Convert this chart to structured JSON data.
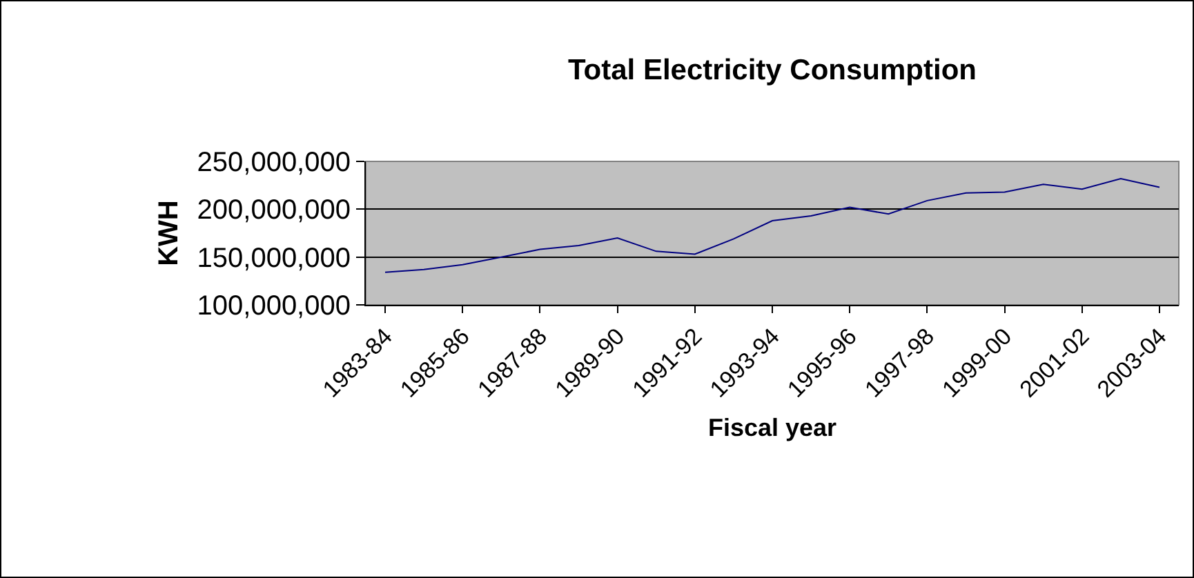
{
  "chart_data": {
    "type": "line",
    "title": "Total Electricity Consumption",
    "xlabel": "Fiscal year",
    "ylabel": "KWH",
    "categories": [
      "1983-84",
      null,
      "1985-86",
      null,
      "1987-88",
      null,
      "1989-90",
      null,
      "1991-92",
      null,
      "1993-94",
      null,
      "1995-96",
      null,
      "1997-98",
      null,
      "1999-00",
      null,
      "2001-02",
      null,
      "2003-04"
    ],
    "series": [
      {
        "color": "#000080",
        "values": [
          134000000,
          137000000,
          142000000,
          150000000,
          158000000,
          162000000,
          170000000,
          156000000,
          153000000,
          169000000,
          188000000,
          193000000,
          202000000,
          195000000,
          209000000,
          217000000,
          218000000,
          226000000,
          221000000,
          232000000,
          223000000
        ]
      }
    ],
    "ylim": [
      100000000,
      250000000
    ],
    "yticks": [
      {
        "value": 100000000,
        "label": "100,000,000"
      },
      {
        "value": 150000000,
        "label": "150,000,000"
      },
      {
        "value": 200000000,
        "label": "200,000,000"
      },
      {
        "value": 250000000,
        "label": "250,000,000"
      }
    ],
    "grid": "y",
    "marker": "none",
    "line_style": "solid"
  }
}
